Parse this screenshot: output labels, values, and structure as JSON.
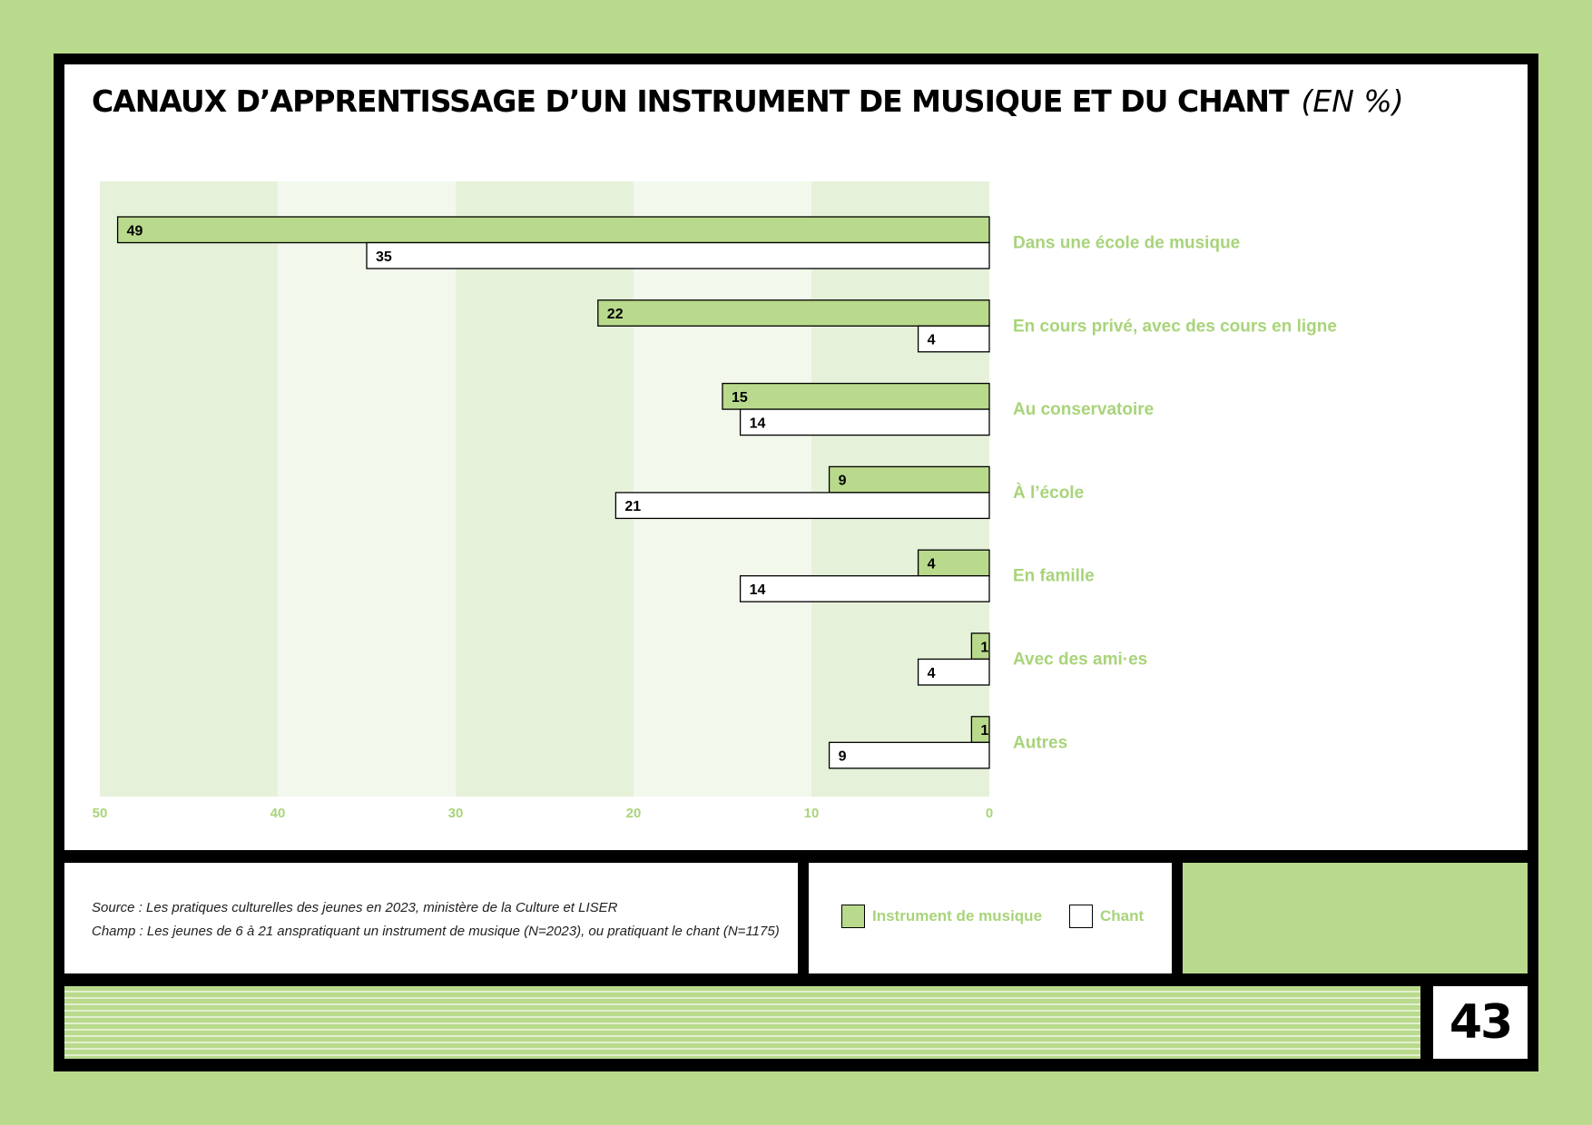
{
  "title": "CANAUX D’APPRENTISSAGE D’UN INSTRUMENT DE MUSIQUE ET DU CHANT",
  "title_unit": "(EN %)",
  "colors": {
    "background": "#b9da8c",
    "instrument": "#b9da8c",
    "chant": "#ffffff",
    "category_label": "#a8d47a",
    "band_dark": "#e6f1da",
    "band_light": "#f3f8ed"
  },
  "source": {
    "line1": "Source : Les pratiques culturelles des jeunes en 2023, ministère de la Culture et LISER",
    "line2": "Champ : Les jeunes de 6 à 21 anspratiquant un instrument de musique (N=2023), ou pratiquant le chant (N=1175)"
  },
  "legend": {
    "instrument": "Instrument de musique",
    "chant": "Chant"
  },
  "page_number": "43",
  "chart_data": {
    "type": "bar",
    "orientation": "horizontal",
    "x_direction": "reversed",
    "categories": [
      "Dans une école de musique",
      "En cours privé, avec des cours en ligne",
      "Au conservatoire",
      "À l’école",
      "En famille",
      "Avec des ami·es",
      "Autres"
    ],
    "series": [
      {
        "name": "Instrument de musique",
        "values": [
          49,
          22,
          15,
          9,
          4,
          1,
          1
        ]
      },
      {
        "name": "Chant",
        "values": [
          35,
          4,
          14,
          21,
          14,
          4,
          9
        ]
      }
    ],
    "xlim": [
      0,
      50
    ],
    "xticks": [
      50,
      40,
      30,
      20,
      10,
      0
    ],
    "grid": "alternating bands"
  }
}
